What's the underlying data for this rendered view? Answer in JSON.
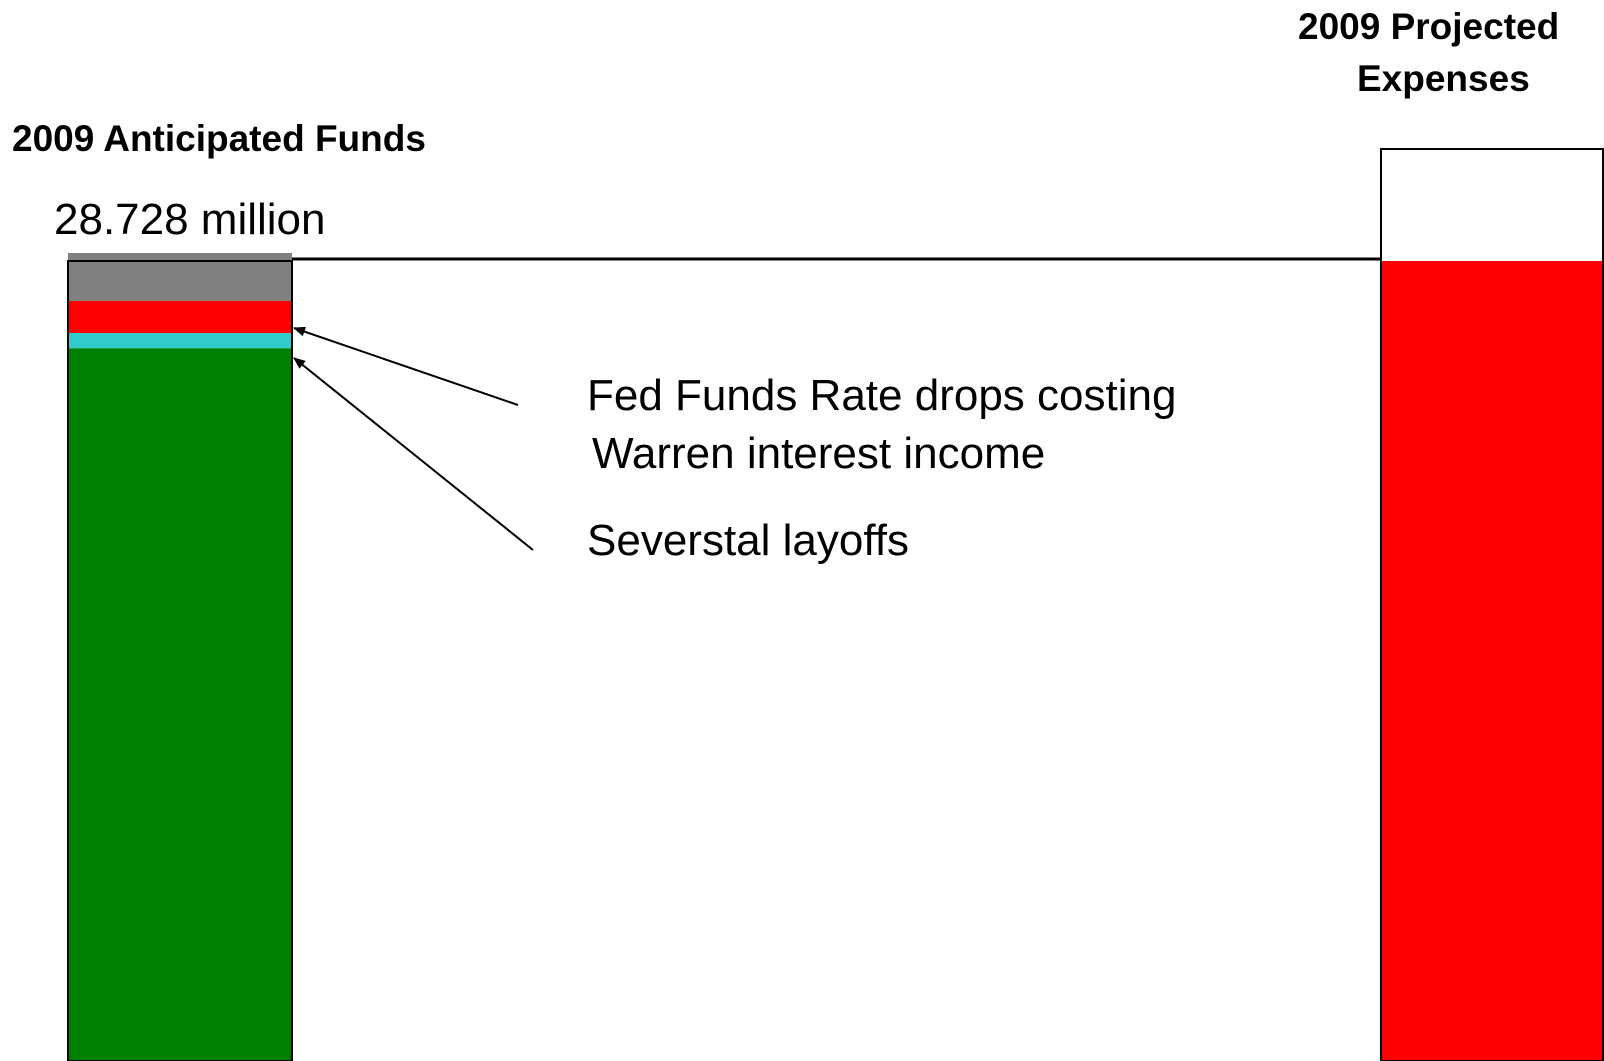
{
  "chart_data": {
    "type": "bar",
    "left_bar": {
      "title": "2009 Anticipated Funds",
      "value_label": "28.728 million",
      "segments": [
        {
          "key": "green",
          "color": "#008000",
          "share": 0.891
        },
        {
          "key": "interest",
          "color": "#33cccc",
          "share": 0.019
        },
        {
          "key": "severstal",
          "color": "#ff0000",
          "share": 0.04
        },
        {
          "key": "gray",
          "color": "#808080",
          "share": 0.06
        }
      ]
    },
    "right_bar": {
      "title_line1": "2009 Projected",
      "title_line2": "Expenses",
      "filled_color": "#ff0000",
      "empty_color": "#ffffff",
      "excess_share_of_funds": 0.14
    },
    "annotations": {
      "fed_line1": "Fed Funds Rate drops costing",
      "fed_line2": "Warren interest income",
      "severstal": "Severstal layoffs"
    }
  }
}
